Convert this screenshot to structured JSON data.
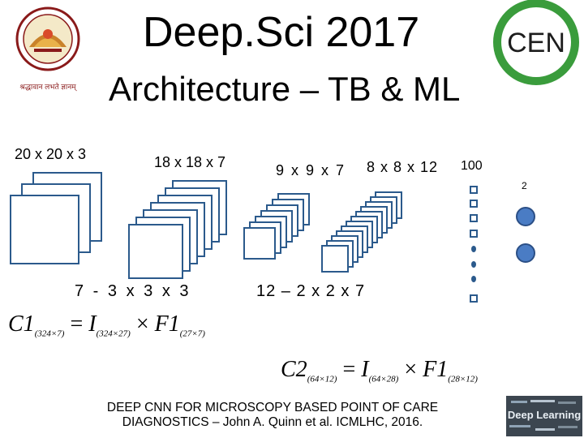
{
  "slide": {
    "title": "Deep.Sci 2017",
    "subtitle": "Architecture – TB & ML",
    "logo_left": {
      "motto": "श्रद्धावान लभते ज्ञानम्",
      "ring_text": "AMRITA VISHWA VIDYAPEETHAM"
    },
    "logo_right": {
      "text": "CEN",
      "ring_color": "#3a9c3c"
    },
    "layer_labels": {
      "input": "20 x 20 x 3",
      "conv1": "18 x 18 x 7",
      "pool1": "9 x 9 x 7",
      "conv2": "8 x 8 x 12",
      "fc": "100",
      "out": "2",
      "filter1": "7 - 3 x 3 x 3",
      "filter2": "12 – 2 x 2 x 7"
    },
    "formulas": {
      "c1": {
        "lhs": "C1",
        "lhs_sub": "(324×7)",
        "eq": "=",
        "i": "I",
        "i_sub": "(324×27)",
        "times": "×",
        "f": "F1",
        "f_sub": "(27×7)"
      },
      "c2": {
        "lhs": "C2",
        "lhs_sub": "(64×12)",
        "eq": "=",
        "i": "I",
        "i_sub": "(64×28)",
        "times": "×",
        "f": "F1",
        "f_sub": "(28×12)"
      }
    },
    "footer": {
      "line1": "DEEP CNN FOR MICROSCOPY BASED POINT OF CARE",
      "line2": "DIAGNOSTICS – John A. Quinn et al. ICMLHC, 2016."
    },
    "wordcloud_logo": {
      "text": "Deep Learning"
    },
    "colors": {
      "square_border": "#2b5a8c",
      "node_fill": "#4a7cc4",
      "node_border": "#2b4f86"
    }
  }
}
